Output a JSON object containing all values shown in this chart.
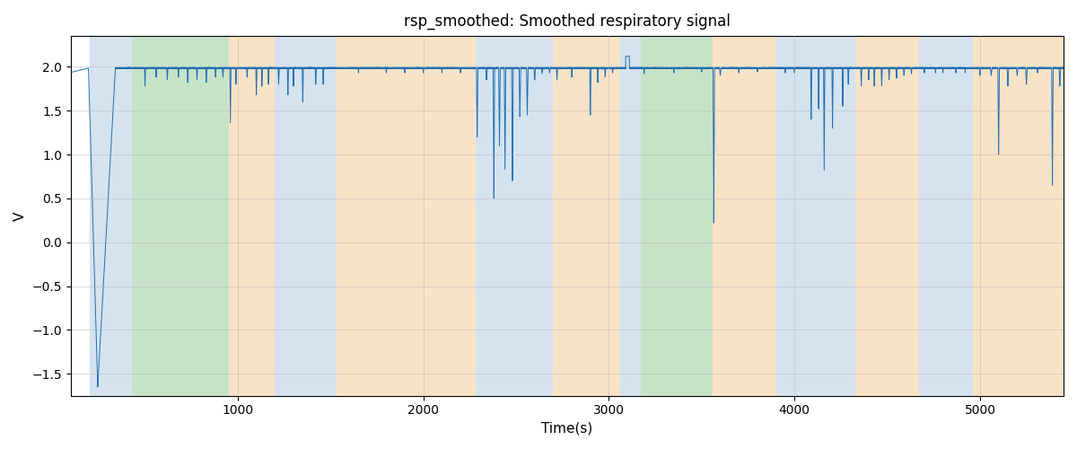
{
  "title": "rsp_smoothed: Smoothed respiratory signal",
  "xlabel": "Time(s)",
  "ylabel": "V",
  "xlim": [
    100,
    5450
  ],
  "ylim": [
    -1.75,
    2.35
  ],
  "bg_regions": [
    {
      "xmin": 200,
      "xmax": 430,
      "color": "#adc8e0",
      "alpha": 0.5
    },
    {
      "xmin": 430,
      "xmax": 950,
      "color": "#90c890",
      "alpha": 0.5
    },
    {
      "xmin": 950,
      "xmax": 1200,
      "color": "#f5c890",
      "alpha": 0.5
    },
    {
      "xmin": 1200,
      "xmax": 1530,
      "color": "#adc8e0",
      "alpha": 0.5
    },
    {
      "xmin": 1530,
      "xmax": 2280,
      "color": "#f5c890",
      "alpha": 0.5
    },
    {
      "xmin": 2280,
      "xmax": 2700,
      "color": "#adc8e0",
      "alpha": 0.5
    },
    {
      "xmin": 2700,
      "xmax": 3060,
      "color": "#f5c890",
      "alpha": 0.5
    },
    {
      "xmin": 3060,
      "xmax": 3170,
      "color": "#adc8e0",
      "alpha": 0.5
    },
    {
      "xmin": 3170,
      "xmax": 3560,
      "color": "#90c890",
      "alpha": 0.5
    },
    {
      "xmin": 3560,
      "xmax": 3900,
      "color": "#f5c890",
      "alpha": 0.5
    },
    {
      "xmin": 3900,
      "xmax": 4330,
      "color": "#adc8e0",
      "alpha": 0.5
    },
    {
      "xmin": 4330,
      "xmax": 4670,
      "color": "#f5c890",
      "alpha": 0.5
    },
    {
      "xmin": 4670,
      "xmax": 4960,
      "color": "#adc8e0",
      "alpha": 0.5
    },
    {
      "xmin": 4960,
      "xmax": 5450,
      "color": "#f5c890",
      "alpha": 0.5
    }
  ],
  "signal_color": "#1f6eb5",
  "signal_linewidth": 0.7,
  "base_value": 1.985,
  "figsize": [
    12,
    5
  ],
  "dpi": 100
}
